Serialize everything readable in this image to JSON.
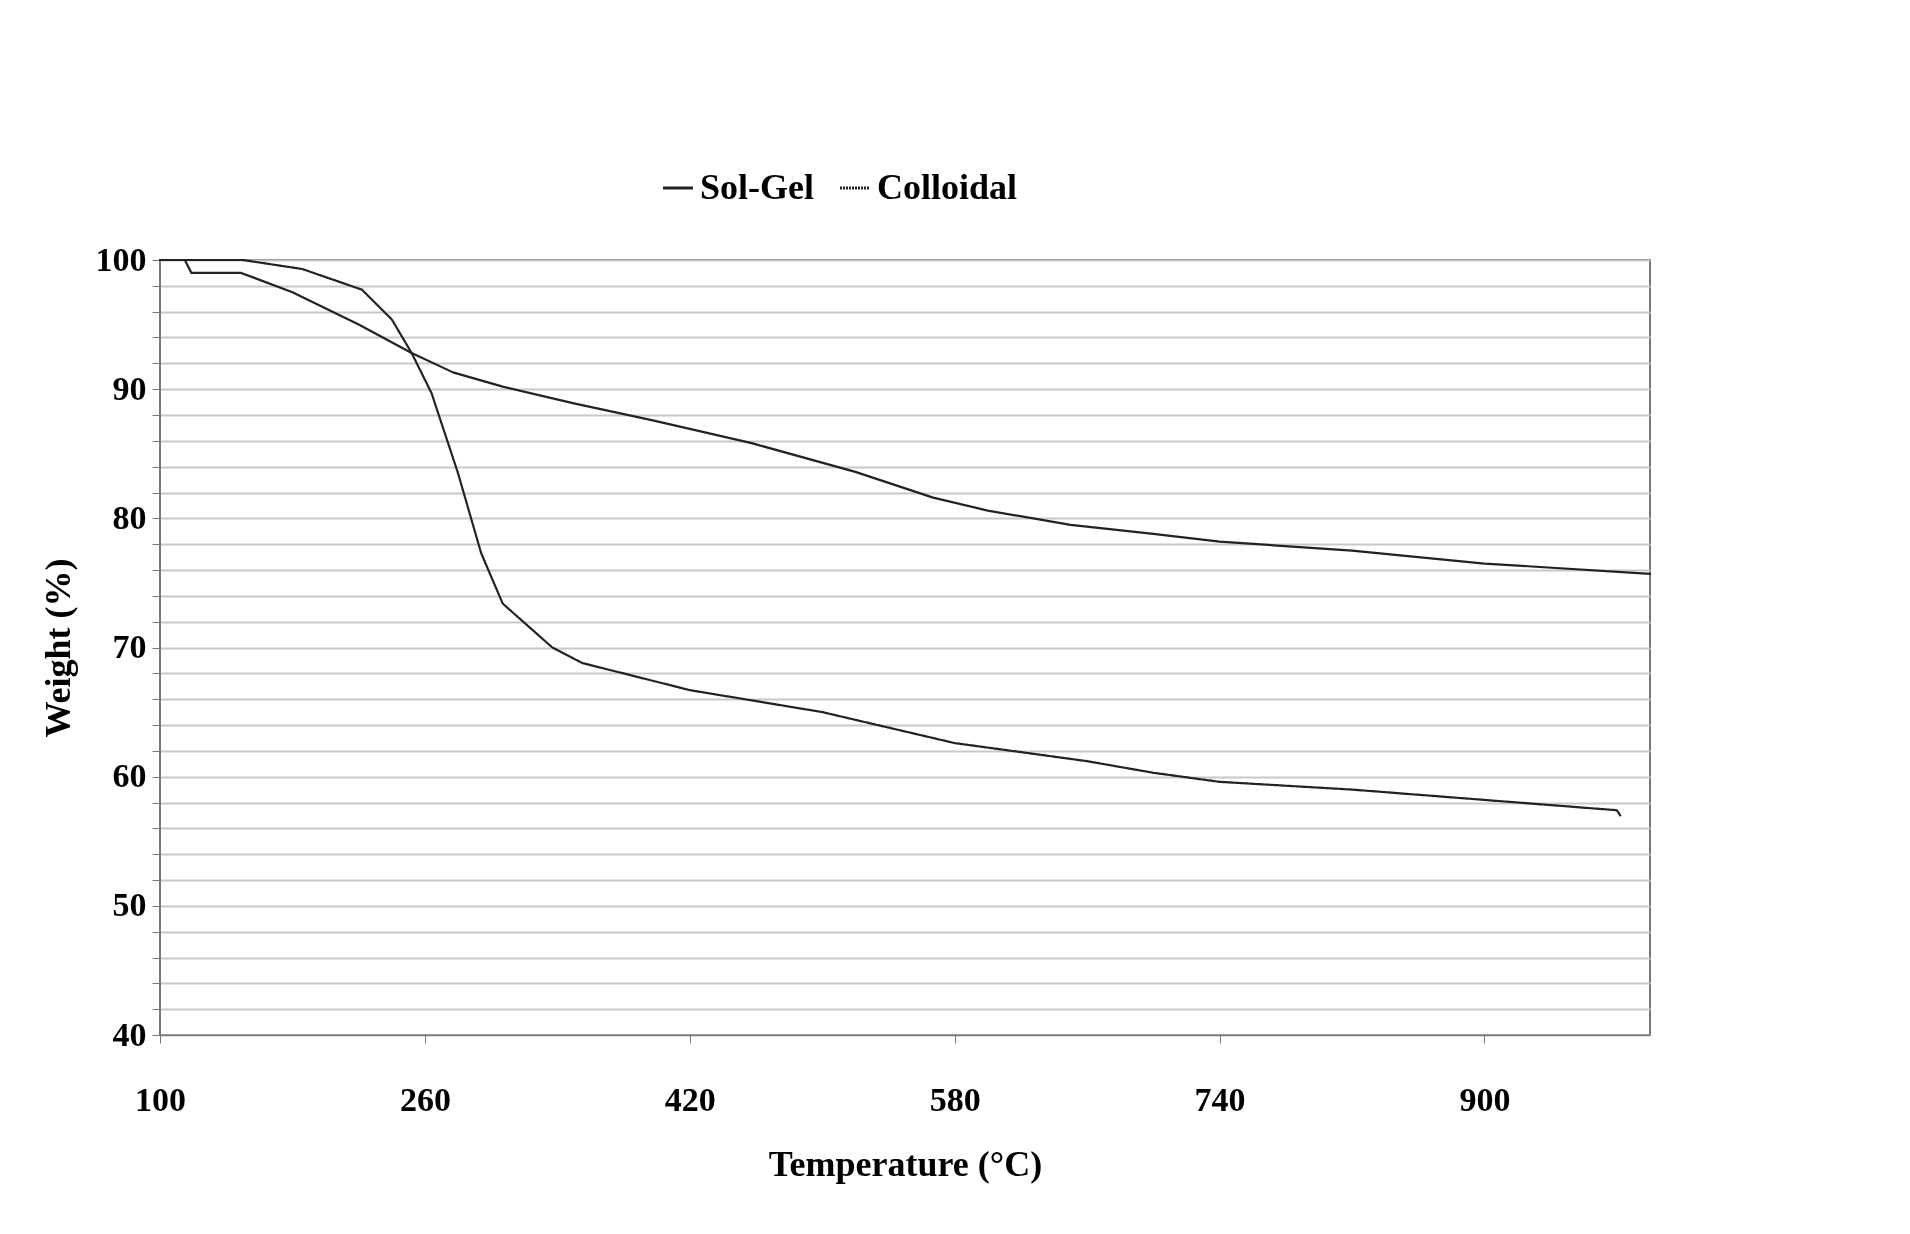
{
  "chart_data": {
    "type": "line",
    "xlabel": "Temperature (°C)",
    "ylabel": "Weight (%)",
    "xlim": [
      100,
      1000
    ],
    "xticks": [
      100,
      260,
      420,
      580,
      740,
      900
    ],
    "ylim": [
      40,
      100
    ],
    "yticks": [
      40,
      {
        "value": 42,
        "label": null
      },
      {
        "value": 44,
        "label": null
      },
      {
        "value": 46,
        "label": null
      },
      {
        "value": 48,
        "label": null
      },
      50,
      {
        "value": 52,
        "label": null
      },
      {
        "value": 54,
        "label": null
      },
      {
        "value": 56,
        "label": null
      },
      {
        "value": 58,
        "label": null
      },
      60,
      {
        "value": 62,
        "label": null
      },
      {
        "value": 64,
        "label": null
      },
      {
        "value": 66,
        "label": null
      },
      {
        "value": 68,
        "label": null
      },
      70,
      {
        "value": 72,
        "label": null
      },
      {
        "value": 74,
        "label": null
      },
      {
        "value": 76,
        "label": null
      },
      {
        "value": 78,
        "label": null
      },
      80,
      {
        "value": 82,
        "label": null
      },
      {
        "value": 84,
        "label": null
      },
      {
        "value": 86,
        "label": null
      },
      {
        "value": 88,
        "label": null
      },
      90,
      {
        "value": 92,
        "label": null
      },
      {
        "value": 94,
        "label": null
      },
      {
        "value": 96,
        "label": null
      },
      {
        "value": 98,
        "label": null
      },
      100
    ],
    "grid": "y",
    "legend": "top",
    "marker": "none",
    "series": [
      {
        "name": "Sol-Gel",
        "color": "#222222",
        "line_style": "solid",
        "x": [
          100,
          115,
          119,
          149,
          180,
          220,
          252,
          277,
          307,
          350,
          397,
          458,
          520,
          567,
          600,
          650,
          700,
          740,
          820,
          900,
          1000
        ],
        "values": [
          100,
          100,
          99,
          99,
          97.5,
          95,
          92.8,
          91.3,
          90.2,
          88.9,
          87.6,
          85.8,
          83.6,
          81.6,
          80.6,
          79.5,
          78.8,
          78.2,
          77.5,
          76.5,
          75.7
        ]
      },
      {
        "name": "Colloidal",
        "color": "#222222",
        "line_style": "dotted",
        "x": [
          100,
          150,
          186,
          222,
          240,
          252,
          264,
          280,
          294,
          307,
          337,
          355,
          420,
          500,
          580,
          660,
          700,
          740,
          820,
          900,
          980,
          982
        ],
        "values": [
          100,
          100,
          99.3,
          97.7,
          95.4,
          92.8,
          89.7,
          83.5,
          77.3,
          73.4,
          70,
          68.8,
          66.7,
          65,
          62.6,
          61.2,
          60.3,
          59.6,
          59,
          58.2,
          57.4,
          57
        ]
      }
    ]
  }
}
